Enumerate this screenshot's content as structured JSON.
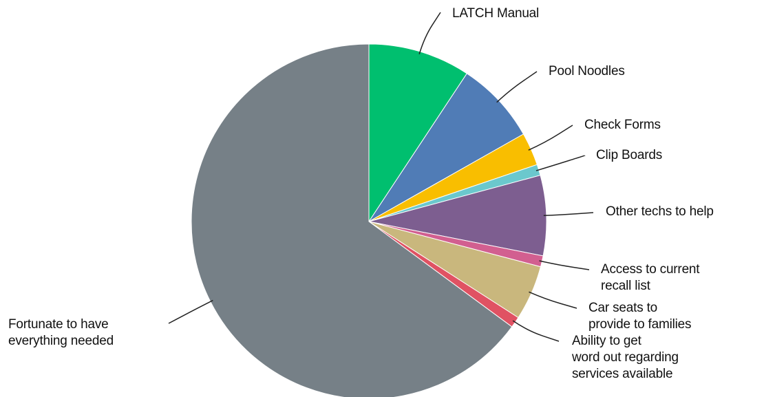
{
  "chart_data": {
    "type": "pie",
    "categories": [
      "LATCH Manual",
      "Pool Noodles",
      "Check Forms",
      "Clip Boards",
      "Other techs to help",
      "Access to current\nrecall list",
      "Car seats to\nprovide to families",
      "Ability to get\nword out regarding\nservices available",
      "Fortunate to have\neverything needed"
    ],
    "values": [
      9.3,
      7.5,
      3,
      1,
      7.3,
      1,
      5,
      1,
      64.9
    ],
    "colors": [
      "#00bf6f",
      "#507cb6",
      "#f9be00",
      "#6bc8cd",
      "#7d5e90",
      "#d25f90",
      "#c9b77d",
      "#e05263",
      "#768087"
    ]
  }
}
